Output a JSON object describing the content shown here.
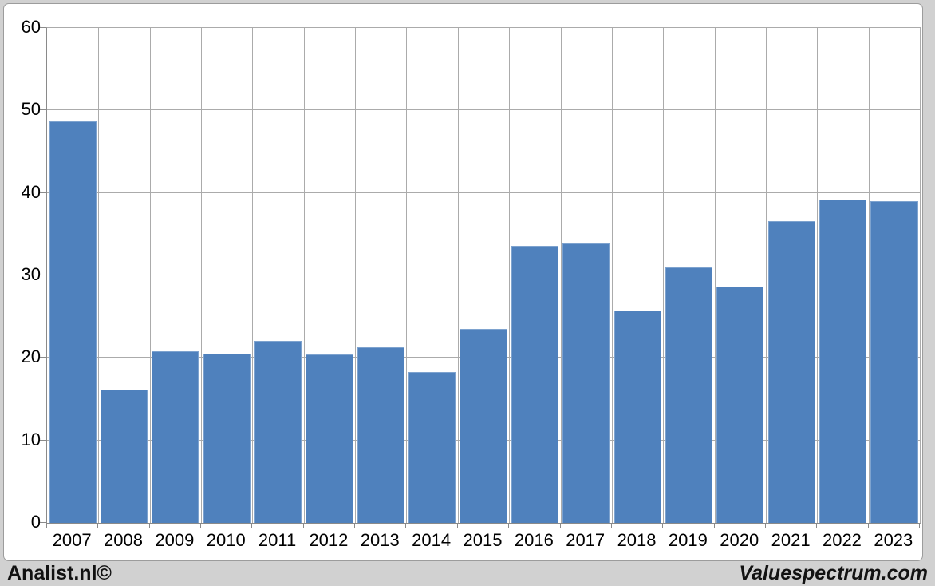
{
  "chart_data": {
    "type": "bar",
    "title": "",
    "xlabel": "",
    "ylabel": "",
    "categories": [
      "2007",
      "2008",
      "2009",
      "2010",
      "2011",
      "2012",
      "2013",
      "2014",
      "2015",
      "2016",
      "2017",
      "2018",
      "2019",
      "2020",
      "2021",
      "2022",
      "2023"
    ],
    "values": [
      48.7,
      16.2,
      20.8,
      20.5,
      22.1,
      20.4,
      21.3,
      18.3,
      23.5,
      33.6,
      34.0,
      25.7,
      31.0,
      28.6,
      36.6,
      39.2,
      39.0
    ],
    "ylim": [
      0,
      60
    ],
    "yticks": [
      0,
      10,
      20,
      30,
      40,
      50,
      60
    ],
    "grid": true,
    "legend_position": "none",
    "bar_color": "#4f81bd",
    "bar_border_color": "#7ea3cf"
  },
  "footer": {
    "left_label": "Analist.nl©",
    "right_label": "Valuespectrum.com"
  },
  "colors": {
    "page_background": "#d1d1d1",
    "panel_background": "#ffffff",
    "panel_border": "#9c9c9c",
    "gridline": "#ababab",
    "axis": "#8a8a8a",
    "text": "#000000"
  }
}
